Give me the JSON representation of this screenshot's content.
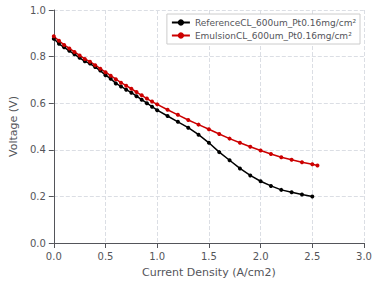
{
  "chart_data": {
    "type": "line",
    "xlabel": "Current Density (A/cm2)",
    "ylabel": "Voltage (V)",
    "xlim": [
      0.0,
      3.0
    ],
    "ylim": [
      0.0,
      1.0
    ],
    "xticks": [
      {
        "value": 0,
        "label": "0.0"
      },
      0.5,
      {
        "value": 1,
        "label": "1.0"
      },
      1.5,
      {
        "value": 2,
        "label": "2.0"
      },
      2.5,
      {
        "value": 3,
        "label": "3.0"
      }
    ],
    "yticks": [
      {
        "value": 0,
        "label": "0.0"
      },
      0.2,
      0.4,
      0.6,
      0.8,
      {
        "value": 1,
        "label": "1.0"
      }
    ],
    "grid": true,
    "legend": "upper right",
    "marker": "circle",
    "series": [
      {
        "name": "ReferenceCL_600um_Pt0.16mg/cm²",
        "color": "#000000",
        "x": [
          0.0,
          0.05,
          0.1,
          0.15,
          0.2,
          0.25,
          0.3,
          0.35,
          0.4,
          0.45,
          0.5,
          0.55,
          0.6,
          0.65,
          0.7,
          0.75,
          0.8,
          0.85,
          0.9,
          0.95,
          1.0,
          1.1,
          1.2,
          1.3,
          1.4,
          1.5,
          1.6,
          1.7,
          1.8,
          1.9,
          2.0,
          2.1,
          2.2,
          2.3,
          2.4,
          2.5
        ],
        "values": [
          0.877,
          0.855,
          0.84,
          0.825,
          0.81,
          0.795,
          0.78,
          0.77,
          0.755,
          0.74,
          0.72,
          0.705,
          0.685,
          0.672,
          0.658,
          0.645,
          0.63,
          0.615,
          0.6,
          0.585,
          0.57,
          0.545,
          0.52,
          0.495,
          0.465,
          0.43,
          0.39,
          0.355,
          0.32,
          0.29,
          0.265,
          0.245,
          0.228,
          0.218,
          0.208,
          0.2
        ]
      },
      {
        "name": "EmulsionCL_600um_Pt0.16mg/cm²",
        "color": "#cc0000",
        "x": [
          0.0,
          0.05,
          0.1,
          0.15,
          0.2,
          0.25,
          0.3,
          0.35,
          0.4,
          0.45,
          0.5,
          0.55,
          0.6,
          0.65,
          0.7,
          0.75,
          0.8,
          0.85,
          0.9,
          0.95,
          1.0,
          1.1,
          1.2,
          1.3,
          1.4,
          1.5,
          1.6,
          1.7,
          1.8,
          1.9,
          2.0,
          2.1,
          2.2,
          2.3,
          2.4,
          2.5,
          2.55
        ],
        "values": [
          0.887,
          0.868,
          0.85,
          0.835,
          0.82,
          0.805,
          0.79,
          0.778,
          0.763,
          0.748,
          0.733,
          0.718,
          0.703,
          0.688,
          0.675,
          0.662,
          0.648,
          0.634,
          0.62,
          0.607,
          0.595,
          0.572,
          0.55,
          0.528,
          0.508,
          0.488,
          0.468,
          0.448,
          0.43,
          0.413,
          0.397,
          0.382,
          0.368,
          0.357,
          0.347,
          0.338,
          0.333
        ]
      }
    ]
  }
}
